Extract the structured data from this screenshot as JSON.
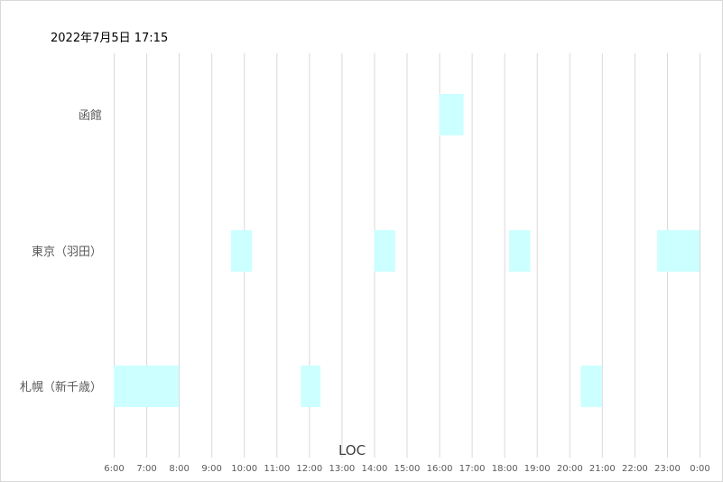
{
  "timestamp": "2022年7月5日 17:15",
  "chart_data": {
    "type": "bar",
    "orientation": "horizontal-range",
    "xlabel": "LOC",
    "x_ticks": [
      "6:00",
      "7:00",
      "8:00",
      "9:00",
      "10:00",
      "11:00",
      "12:00",
      "13:00",
      "14:00",
      "15:00",
      "16:00",
      "17:00",
      "18:00",
      "19:00",
      "20:00",
      "21:00",
      "22:00",
      "23:00",
      "0:00"
    ],
    "xlim": [
      6,
      24
    ],
    "grid": true,
    "colors": {
      "bar": "#ccffff",
      "grid": "#d9d9d9"
    },
    "categories": [
      "函館",
      "東京（羽田）",
      "札幌（新千歳）"
    ],
    "intervals": [
      {
        "category": "函館",
        "start": 16.0,
        "end": 16.75
      },
      {
        "category": "東京（羽田）",
        "start": 9.6,
        "end": 10.25
      },
      {
        "category": "東京（羽田）",
        "start": 14.0,
        "end": 14.65
      },
      {
        "category": "東京（羽田）",
        "start": 18.15,
        "end": 18.8
      },
      {
        "category": "東京（羽田）",
        "start": 22.7,
        "end": 24.0
      },
      {
        "category": "札幌（新千歳）",
        "start": 6.0,
        "end": 8.0
      },
      {
        "category": "札幌（新千歳）",
        "start": 11.75,
        "end": 12.35
      },
      {
        "category": "札幌（新千歳）",
        "start": 20.35,
        "end": 21.0
      }
    ]
  }
}
